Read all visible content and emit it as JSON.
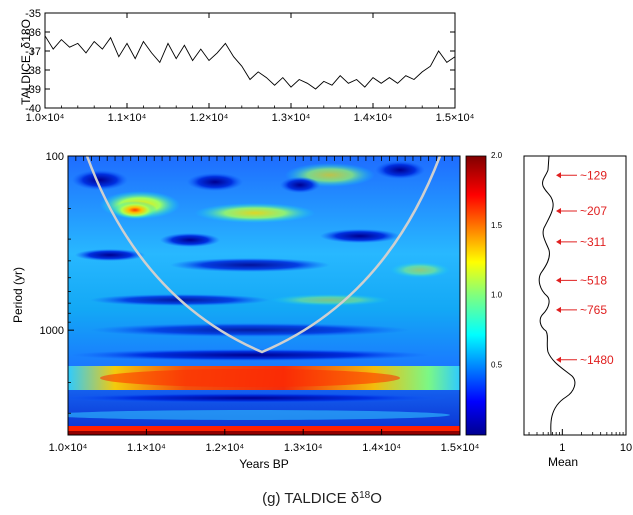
{
  "chart_data": [
    {
      "type": "line",
      "ylabel": "TALDICE_δ18O",
      "xlim": [
        10000,
        15000
      ],
      "ylim": [
        -40,
        -35
      ],
      "xticks": [
        "1.0×10⁴",
        "1.1×10⁴",
        "1.2×10⁴",
        "1.3×10⁴",
        "1.4×10⁴",
        "1.5×10⁴"
      ],
      "yticks": [
        "-35",
        "-36",
        "-37",
        "-38",
        "-39",
        "-40"
      ],
      "series": [
        {
          "x": [
            10000,
            10100,
            10200,
            10300,
            10400,
            10500,
            10600,
            10700,
            10800,
            10900,
            11000,
            11100,
            11200,
            11300,
            11400,
            11500,
            11600,
            11700,
            11800,
            11900,
            12000,
            12100,
            12200,
            12300,
            12400,
            12500,
            12600,
            12700,
            12800,
            12900,
            13000,
            13100,
            13200,
            13300,
            13400,
            13500,
            13600,
            13700,
            13800,
            13900,
            14000,
            14100,
            14200,
            14300,
            14400,
            14500,
            14600,
            14700,
            14800,
            14900,
            15000
          ],
          "values": [
            -36.2,
            -36.9,
            -36.4,
            -36.8,
            -36.6,
            -37.1,
            -36.5,
            -36.9,
            -36.3,
            -37.3,
            -36.6,
            -37.4,
            -36.5,
            -37.1,
            -37.6,
            -36.6,
            -37.4,
            -36.7,
            -37.5,
            -36.9,
            -37.5,
            -37.1,
            -36.6,
            -37.3,
            -37.8,
            -38.5,
            -38.1,
            -38.4,
            -38.8,
            -38.4,
            -38.9,
            -38.5,
            -38.7,
            -39.0,
            -38.6,
            -38.8,
            -38.3,
            -38.7,
            -38.5,
            -38.9,
            -38.4,
            -38.7,
            -38.4,
            -38.7,
            -38.3,
            -38.5,
            -38.1,
            -37.8,
            -37.0,
            -37.6,
            -37.3
          ]
        }
      ]
    },
    {
      "type": "heatmap",
      "xlabel": "Years BP",
      "ylabel": "Period (yr)",
      "xlim": [
        10000,
        15000
      ],
      "ylim": [
        100,
        4000
      ],
      "yscale": "log",
      "xticks": [
        "1.0×10⁴",
        "1.1×10⁴",
        "1.2×10⁴",
        "1.3×10⁴",
        "1.4×10⁴",
        "1.5×10⁴"
      ],
      "yticks": [
        "100",
        "1000"
      ],
      "colorbar": {
        "min": 0,
        "max": 2.0,
        "ticks": [
          "2.0",
          "1.5",
          "1.0",
          "0.5"
        ]
      },
      "cone_of_influence": true,
      "bands": [
        {
          "period": 2000,
          "power": 1.85,
          "x_center": 12000,
          "x_width": 3200
        },
        {
          "period": 3900,
          "power": 1.9,
          "x_center": 12500,
          "x_width": 5000
        },
        {
          "period": 207,
          "power": 1.45,
          "x_center": 10950,
          "x_width": 450
        },
        {
          "period": 207,
          "power": 1.2,
          "x_center": 12100,
          "x_width": 700
        }
      ]
    },
    {
      "type": "line",
      "xlabel": "Mean",
      "xscale": "log",
      "xlim": [
        0.25,
        10
      ],
      "xticks": [
        "1",
        "10"
      ],
      "peaks": [
        "~129",
        "~207",
        "~311",
        "~518",
        "~765",
        "~1480"
      ]
    }
  ],
  "caption": "(g) TALDICE δ18O"
}
